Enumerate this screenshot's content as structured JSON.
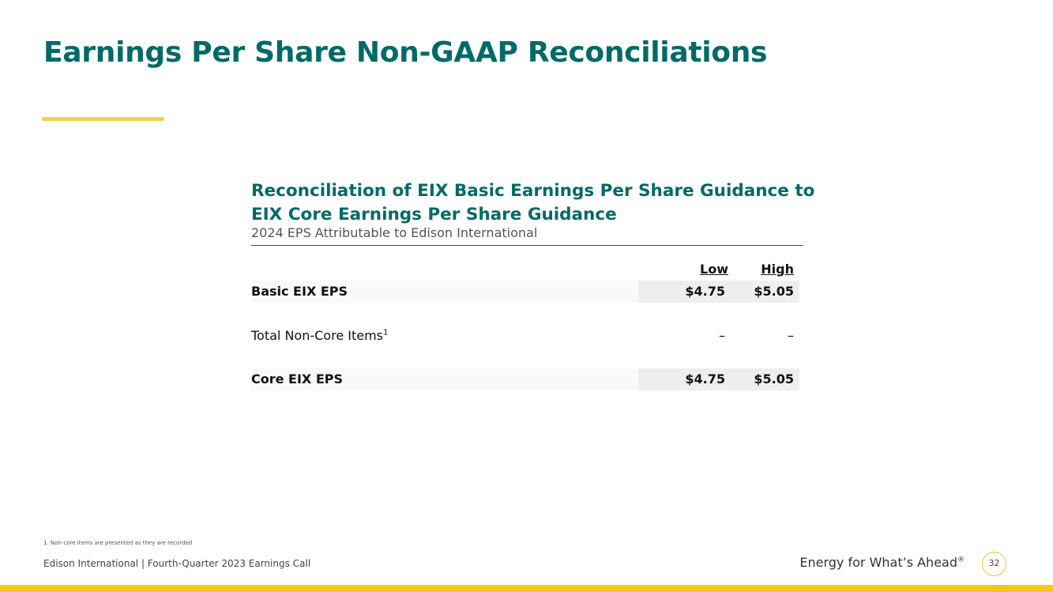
{
  "slide": {
    "title": "Earnings Per Share Non-GAAP Reconciliations",
    "accent_color": "#f3d04a",
    "title_color": "#006a67"
  },
  "table": {
    "heading": "Reconciliation of EIX Basic Earnings Per Share Guidance to EIX Core Earnings Per Share Guidance",
    "subtitle": "2024 EPS Attributable to Edison International",
    "columns": [
      "Low",
      "High"
    ],
    "rows": [
      {
        "label": "Basic EIX EPS",
        "footnote_ref": "",
        "low": "$4.75",
        "high": "$5.05"
      },
      {
        "label": "Total Non-Core Items",
        "footnote_ref": "1",
        "low": "–",
        "high": "–"
      },
      {
        "label": "Core EIX EPS",
        "footnote_ref": "",
        "low": "$4.75",
        "high": "$5.05"
      }
    ]
  },
  "footnote": "1.   Non-core items are presented as they are recorded",
  "footer": {
    "left": "Edison International |  Fourth-Quarter 2023 Earnings Call",
    "tagline": "Energy for What’s Ahead",
    "tagline_mark": "®",
    "page_number": "32",
    "bar_color": "#f5c518"
  }
}
